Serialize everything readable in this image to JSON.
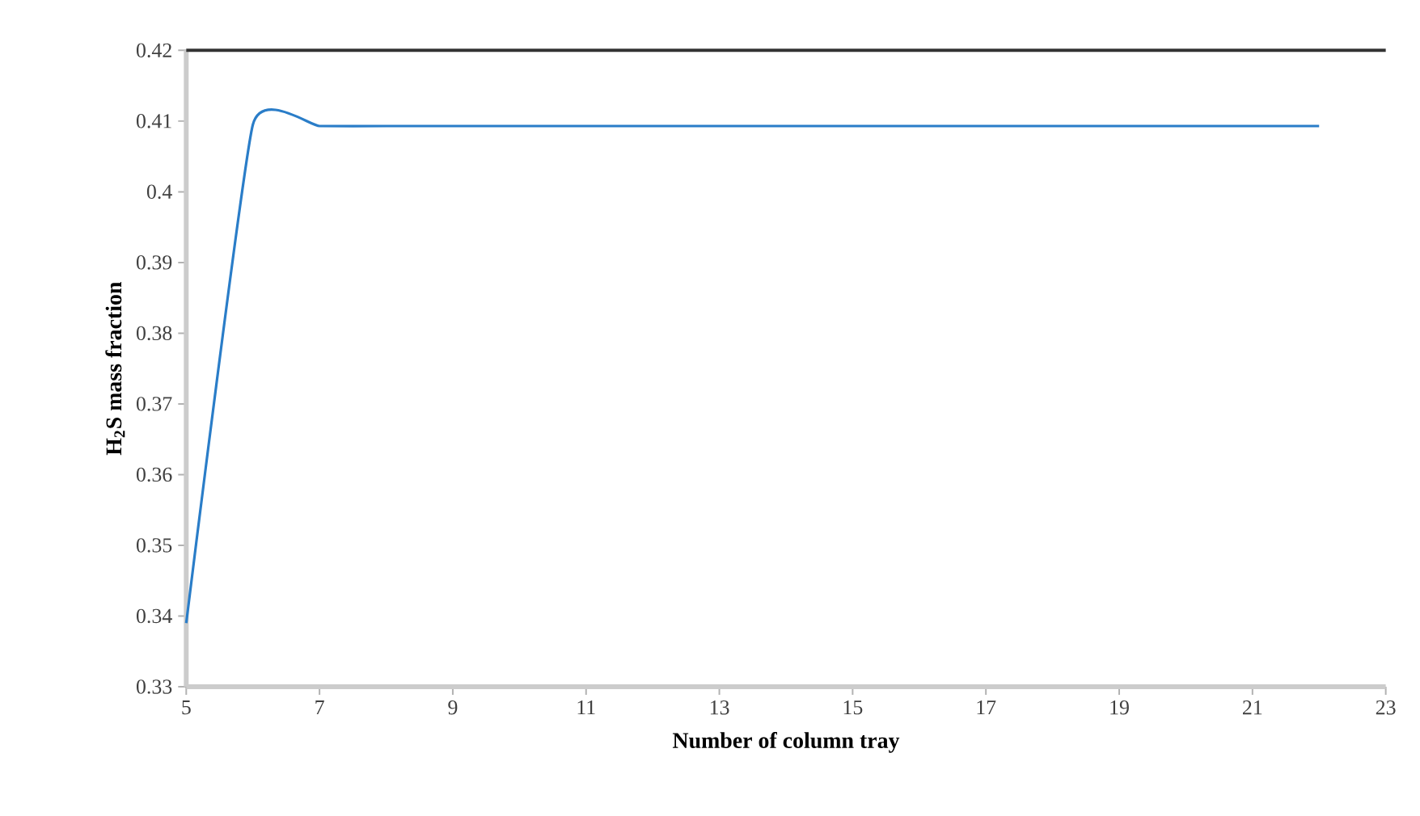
{
  "chart_data": {
    "type": "line",
    "xlabel": "Number of column tray",
    "ylabel": "H$_{2}$S mass fraction",
    "x": [
      5,
      6,
      7,
      8,
      9,
      10,
      11,
      12,
      13,
      14,
      15,
      16,
      17,
      18,
      19,
      20,
      21,
      22
    ],
    "series": [
      {
        "color": "#2a7dc8",
        "values": [
          0.339,
          0.4095,
          0.4093,
          0.4093,
          0.4093,
          0.4093,
          0.4093,
          0.4093,
          0.4093,
          0.4093,
          0.4093,
          0.4093,
          0.4093,
          0.4093,
          0.4093,
          0.4093,
          0.4093,
          0.4093
        ]
      }
    ],
    "xlim": [
      5,
      23
    ],
    "xticks": [
      5,
      7,
      9,
      11,
      13,
      15,
      17,
      19,
      21,
      23
    ],
    "ylim": [
      0.33,
      0.42
    ],
    "yticks": [
      0.33,
      0.34,
      0.35,
      0.36,
      0.37,
      0.38,
      0.39,
      0.4,
      0.41,
      0.42
    ],
    "marker": "none",
    "line_style": "solid",
    "grid": false
  }
}
